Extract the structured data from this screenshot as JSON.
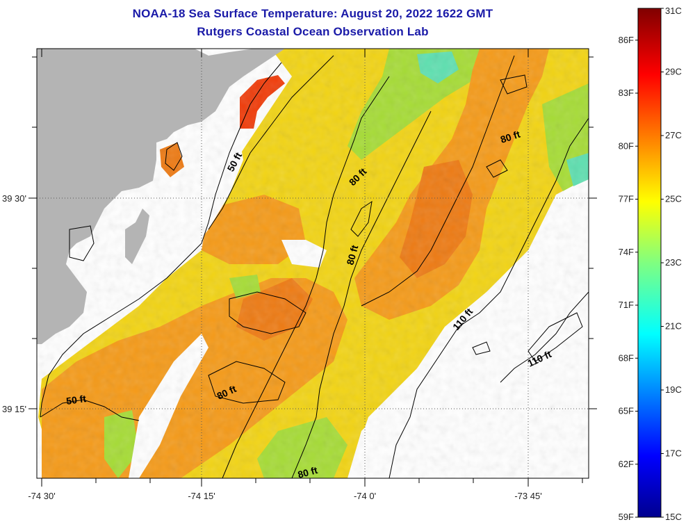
{
  "title": "NOAA-18 Sea Surface Temperature:  August 20, 2022 1622 GMT",
  "subtitle": "Rutgers Coastal Ocean Observation Lab",
  "axes": {
    "x_ticks": [
      "-74 30'",
      "-74 15'",
      "-74 0'",
      "-73 45'"
    ],
    "y_ticks": [
      "39 30'",
      "39 15'"
    ]
  },
  "contours": [
    {
      "label": "50 ft"
    },
    {
      "label": "80 ft"
    },
    {
      "label": "80 ft"
    },
    {
      "label": "80 ft"
    },
    {
      "label": "110 ft"
    },
    {
      "label": "110 ft"
    },
    {
      "label": "50 ft"
    },
    {
      "label": "80 ft"
    },
    {
      "label": "80 ft"
    }
  ],
  "colorbar": {
    "fahrenheit": [
      "86F",
      "83F",
      "80F",
      "77F",
      "74F",
      "71F",
      "68F",
      "65F",
      "62F",
      "59F"
    ],
    "celsius": [
      "31C",
      "29C",
      "27C",
      "25C",
      "23C",
      "21C",
      "19C",
      "17C",
      "15C"
    ],
    "range_c": [
      15,
      31
    ]
  },
  "colors": {
    "land": "#b4b4b4",
    "title": "#1a1aa8"
  }
}
